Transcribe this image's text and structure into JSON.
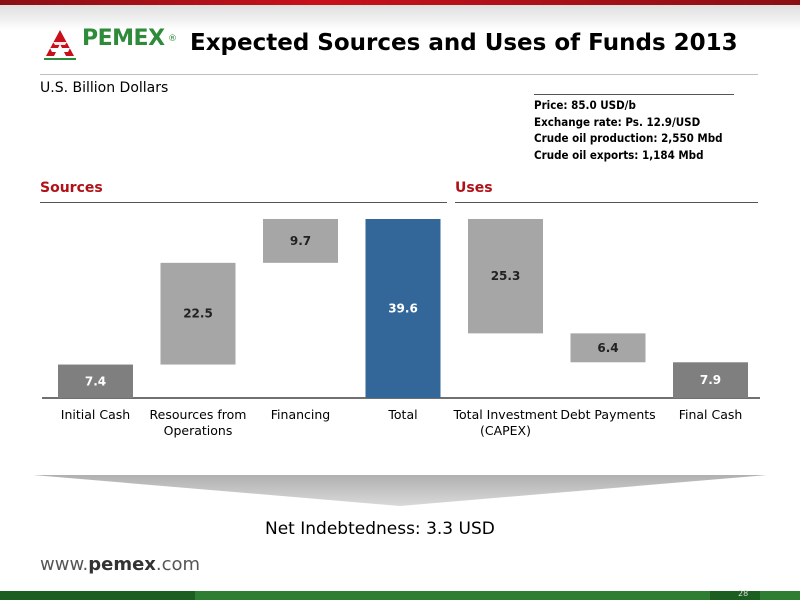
{
  "logo": {
    "text": "PEMEX",
    "reg": "®"
  },
  "title": "Expected Sources and Uses of Funds 2013",
  "units": "U.S. Billion Dollars",
  "assumptions": [
    "Price: 85.0 USD/b",
    "Exchange rate: Ps. 12.9/USD",
    "Crude oil production: 2,550 Mbd",
    "Crude oil exports: 1,184 Mbd"
  ],
  "sections": {
    "sources": "Sources",
    "uses": "Uses"
  },
  "chart_data": {
    "type": "bar",
    "subtype": "waterfall",
    "categories": [
      "Initial Cash",
      "Resources from Operations",
      "Financing",
      "Total",
      "Total Investment (CAPEX)",
      "Debt Payments",
      "Final Cash"
    ],
    "category_lines": [
      [
        "Initial Cash"
      ],
      [
        "Resources from",
        "Operations"
      ],
      [
        "Financing"
      ],
      [
        "Total"
      ],
      [
        "Total Investment",
        "(CAPEX)"
      ],
      [
        "Debt Payments"
      ],
      [
        "Final Cash"
      ]
    ],
    "values": [
      7.4,
      22.5,
      9.7,
      39.6,
      25.3,
      6.4,
      7.9
    ],
    "labels": [
      "7.4",
      "22.5",
      "9.7",
      "39.6",
      "25.3",
      "6.4",
      "7.9"
    ],
    "bar_start": [
      0,
      7.4,
      29.9,
      0,
      14.3,
      7.9,
      0
    ],
    "colors": [
      "#7f7f7f",
      "#a6a6a6",
      "#a6a6a6",
      "#336699",
      "#a6a6a6",
      "#a6a6a6",
      "#7f7f7f"
    ],
    "ylim": [
      0,
      39.6
    ]
  },
  "net_indebtedness": "Net Indebtedness: 3.3 USD",
  "footer": {
    "www": "www.",
    "brand": "pemex",
    "tld": ".com",
    "page": "28"
  }
}
